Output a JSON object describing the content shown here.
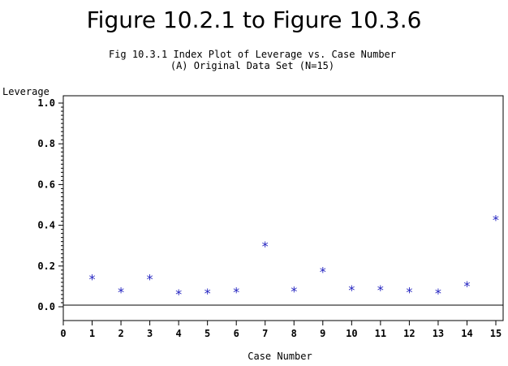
{
  "chart_data": {
    "type": "scatter",
    "title": "Figure 10.2.1 to Figure 10.3.6",
    "subtitle": [
      "Fig 10.3.1 Index Plot of Leverage vs. Case Number",
      "(A) Original Data Set (N=15)"
    ],
    "xlabel": "Case Number",
    "ylabel": "Leverage",
    "xlim": [
      0,
      15
    ],
    "ylim": [
      0,
      1.0
    ],
    "xticks": [
      0,
      1,
      2,
      3,
      4,
      5,
      6,
      7,
      8,
      9,
      10,
      11,
      12,
      13,
      14,
      15
    ],
    "yticks": [
      0.0,
      0.2,
      0.4,
      0.6,
      0.8,
      1.0
    ],
    "ytick_labels": [
      "0.0",
      "0.2",
      "0.4",
      "0.6",
      "0.8",
      "1.0"
    ],
    "marker": "*",
    "marker_color": "#1f1fbf",
    "grid": false,
    "points": [
      {
        "x": 1,
        "y": 0.15
      },
      {
        "x": 2,
        "y": 0.085
      },
      {
        "x": 3,
        "y": 0.15
      },
      {
        "x": 4,
        "y": 0.075
      },
      {
        "x": 5,
        "y": 0.08
      },
      {
        "x": 6,
        "y": 0.085
      },
      {
        "x": 7,
        "y": 0.31
      },
      {
        "x": 8,
        "y": 0.09
      },
      {
        "x": 9,
        "y": 0.185
      },
      {
        "x": 10,
        "y": 0.095
      },
      {
        "x": 11,
        "y": 0.095
      },
      {
        "x": 12,
        "y": 0.085
      },
      {
        "x": 13,
        "y": 0.08
      },
      {
        "x": 14,
        "y": 0.115
      },
      {
        "x": 15,
        "y": 0.44
      }
    ]
  }
}
